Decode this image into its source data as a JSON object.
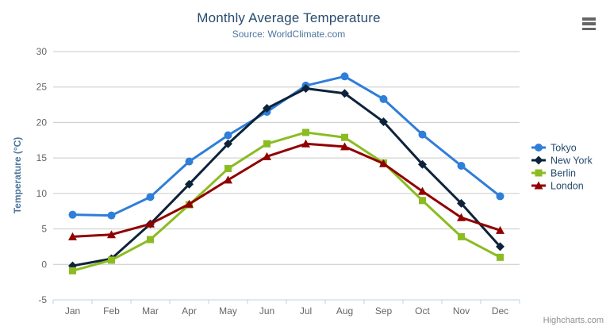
{
  "header": {
    "title": "Monthly Average Temperature",
    "subtitle": "Source: WorldClimate.com",
    "credit": "Highcharts.com"
  },
  "icons": {
    "export_menu": "hamburger-icon"
  },
  "colors": {
    "title": "#274b6d",
    "subtitle": "#4d759e",
    "axis_label": "#666666",
    "axis_line": "#c0d0e0",
    "gridline": "#c9c9c9",
    "legend_text": "#274b6d",
    "credit": "#909090"
  },
  "chart_data": {
    "type": "line",
    "title": "Monthly Average Temperature",
    "subtitle": "Source: WorldClimate.com",
    "xlabel": "",
    "ylabel": "Temperature (°C)",
    "ylim": [
      -5,
      30
    ],
    "ytick_step": 5,
    "grid": true,
    "legend_position": "right",
    "categories": [
      "Jan",
      "Feb",
      "Mar",
      "Apr",
      "May",
      "Jun",
      "Jul",
      "Aug",
      "Sep",
      "Oct",
      "Nov",
      "Dec"
    ],
    "series": [
      {
        "name": "Tokyo",
        "color": "#2f7ed8",
        "marker": "circle",
        "values": [
          7.0,
          6.9,
          9.5,
          14.5,
          18.2,
          21.5,
          25.2,
          26.5,
          23.3,
          18.3,
          13.9,
          9.6
        ]
      },
      {
        "name": "New York",
        "color": "#0d233a",
        "marker": "diamond",
        "values": [
          -0.2,
          0.8,
          5.7,
          11.3,
          17.0,
          22.0,
          24.8,
          24.1,
          20.1,
          14.1,
          8.6,
          2.5
        ]
      },
      {
        "name": "Berlin",
        "color": "#8bbc21",
        "marker": "square",
        "values": [
          -0.9,
          0.6,
          3.5,
          8.4,
          13.5,
          17.0,
          18.6,
          17.9,
          14.3,
          9.0,
          3.9,
          1.0
        ]
      },
      {
        "name": "London",
        "color": "#910000",
        "marker": "triangle",
        "values": [
          3.9,
          4.2,
          5.7,
          8.5,
          11.9,
          15.2,
          17.0,
          16.6,
          14.2,
          10.3,
          6.6,
          4.8
        ]
      }
    ]
  }
}
